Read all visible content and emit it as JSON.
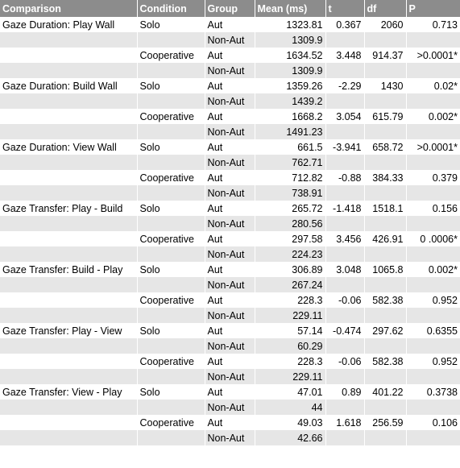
{
  "headers": [
    "Comparison",
    "Condition",
    "Group",
    "Mean (ms)",
    "t",
    "df",
    "P"
  ],
  "rows": [
    [
      "Gaze Duration: Play Wall",
      "Solo",
      "Aut",
      "1323.81",
      "0.367",
      "2060",
      "0.713"
    ],
    [
      "",
      "",
      "Non-Aut",
      "1309.9",
      "",
      "",
      ""
    ],
    [
      "",
      "Cooperative",
      "Aut",
      "1634.52",
      "3.448",
      "914.37",
      ">0.0001*"
    ],
    [
      "",
      "",
      "Non-Aut",
      "1309.9",
      "",
      "",
      ""
    ],
    [
      "Gaze Duration: Build Wall",
      "Solo",
      "Aut",
      "1359.26",
      "-2.29",
      "1430",
      "0.02*"
    ],
    [
      "",
      "",
      "Non-Aut",
      "1439.2",
      "",
      "",
      ""
    ],
    [
      "",
      "Cooperative",
      "Aut",
      "1668.2",
      "3.054",
      "615.79",
      "0.002*"
    ],
    [
      "",
      "",
      "Non-Aut",
      "1491.23",
      "",
      "",
      ""
    ],
    [
      "Gaze Duration: View Wall",
      "Solo",
      "Aut",
      "661.5",
      "-3.941",
      "658.72",
      ">0.0001*"
    ],
    [
      "",
      "",
      "Non-Aut",
      "762.71",
      "",
      "",
      ""
    ],
    [
      "",
      "Cooperative",
      "Aut",
      "712.82",
      "-0.88",
      "384.33",
      "0.379"
    ],
    [
      "",
      "",
      "Non-Aut",
      "738.91",
      "",
      "",
      ""
    ],
    [
      "Gaze Transfer: Play - Build",
      "Solo",
      "Aut",
      "265.72",
      "-1.418",
      "1518.1",
      "0.156"
    ],
    [
      "",
      "",
      "Non-Aut",
      "280.56",
      "",
      "",
      ""
    ],
    [
      "",
      "Cooperative",
      "Aut",
      "297.58",
      "3.456",
      "426.91",
      "0 .0006*"
    ],
    [
      "",
      "",
      "Non-Aut",
      "224.23",
      "",
      "",
      ""
    ],
    [
      "Gaze Transfer: Build - Play",
      "Solo",
      "Aut",
      "306.89",
      "3.048",
      "1065.8",
      "0.002*"
    ],
    [
      "",
      "",
      "Non-Aut",
      "267.24",
      "",
      "",
      ""
    ],
    [
      "",
      "Cooperative",
      "Aut",
      "228.3",
      "-0.06",
      "582.38",
      "0.952"
    ],
    [
      "",
      "",
      "Non-Aut",
      "229.11",
      "",
      "",
      ""
    ],
    [
      "Gaze Transfer: Play - View",
      "Solo",
      "Aut",
      "57.14",
      "-0.474",
      "297.62",
      "0.6355"
    ],
    [
      "",
      "",
      "Non-Aut",
      "60.29",
      "",
      "",
      ""
    ],
    [
      "",
      "Cooperative",
      "Aut",
      "228.3",
      "-0.06",
      "582.38",
      "0.952"
    ],
    [
      "",
      "",
      "Non-Aut",
      "229.11",
      "",
      "",
      ""
    ],
    [
      "Gaze Transfer: View - Play",
      "Solo",
      "Aut",
      "47.01",
      "0.89",
      "401.22",
      "0.3738"
    ],
    [
      "",
      "",
      "Non-Aut",
      "44",
      "",
      "",
      ""
    ],
    [
      "",
      "Cooperative",
      "Aut",
      "49.03",
      "1.618",
      "256.59",
      "0.106"
    ],
    [
      "",
      "",
      "Non-Aut",
      "42.66",
      "",
      "",
      ""
    ]
  ],
  "colors": {
    "header_bg": "#8c8c8c",
    "header_text": "#ffffff",
    "row_alt_bg": "#e6e6e6",
    "row_bg": "#ffffff"
  }
}
